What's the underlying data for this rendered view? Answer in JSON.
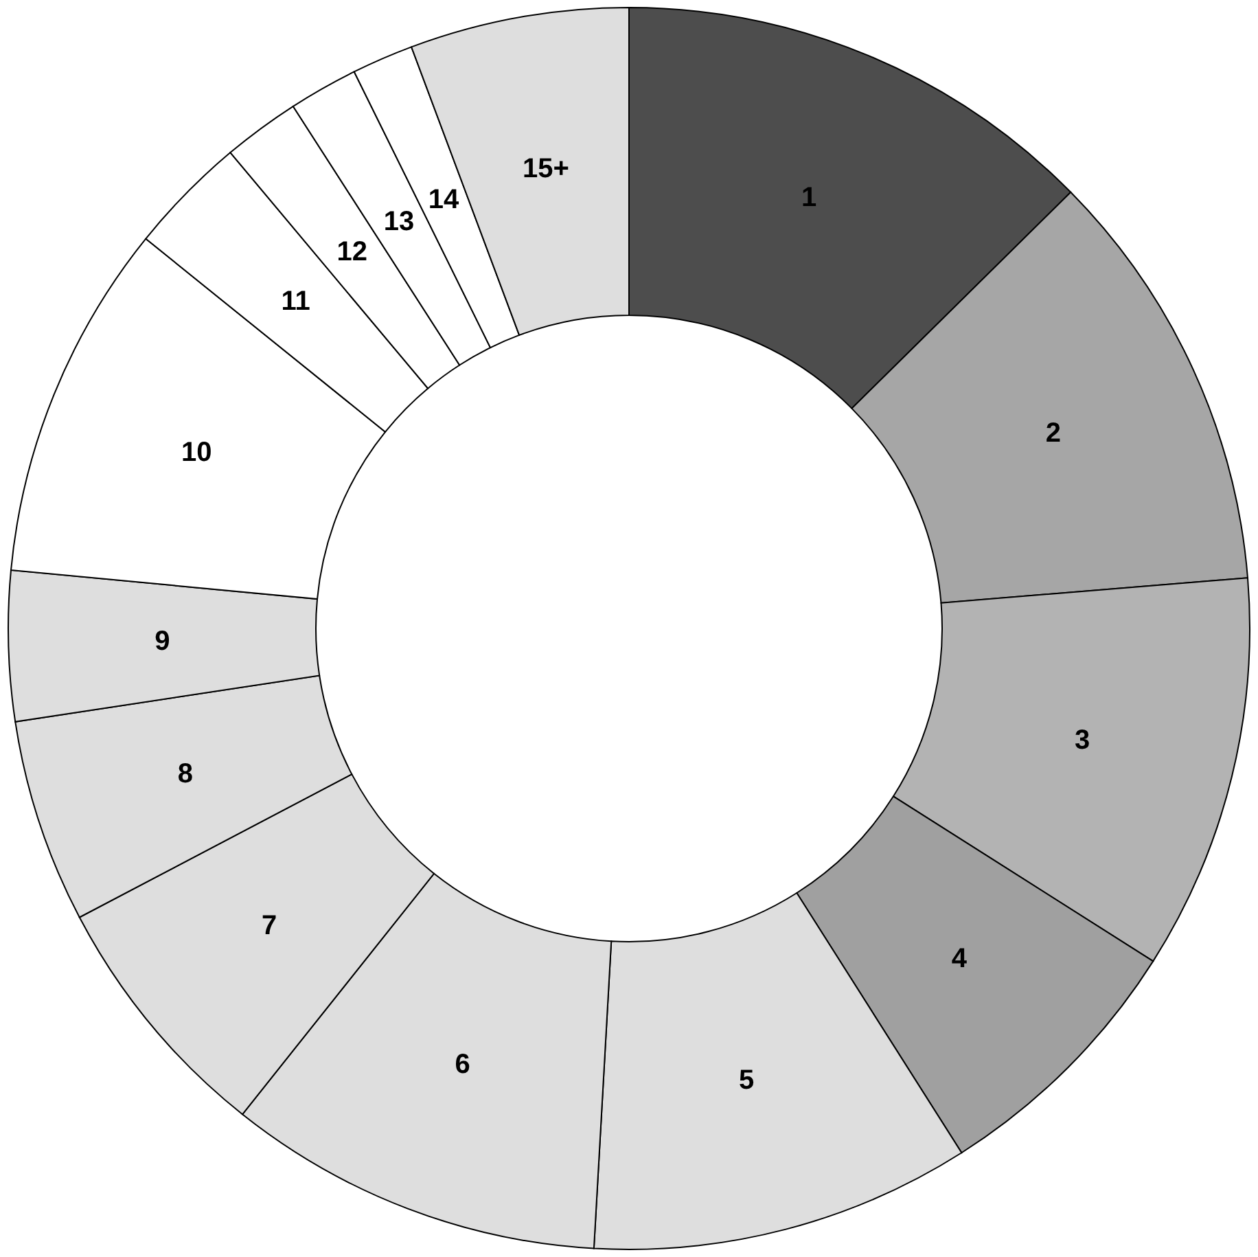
{
  "chart_data": {
    "type": "donut",
    "categories": [
      "1",
      "2",
      "3",
      "4",
      "5",
      "6",
      "7",
      "8",
      "9",
      "10",
      "11",
      "12",
      "13",
      "14",
      "15+"
    ],
    "values": [
      12.6,
      11.1,
      10.3,
      7.0,
      9.9,
      9.8,
      6.6,
      5.3,
      3.9,
      9.3,
      3.1,
      2.0,
      1.8,
      1.6,
      5.7
    ],
    "colors": [
      "#4d4d4d",
      "#a6a6a6",
      "#b3b3b3",
      "#a0a0a0",
      "#dedede",
      "#dedede",
      "#dedede",
      "#dedede",
      "#dedede",
      "#ffffff",
      "#ffffff",
      "#ffffff",
      "#ffffff",
      "#ffffff",
      "#dedede"
    ],
    "legend": false
  }
}
